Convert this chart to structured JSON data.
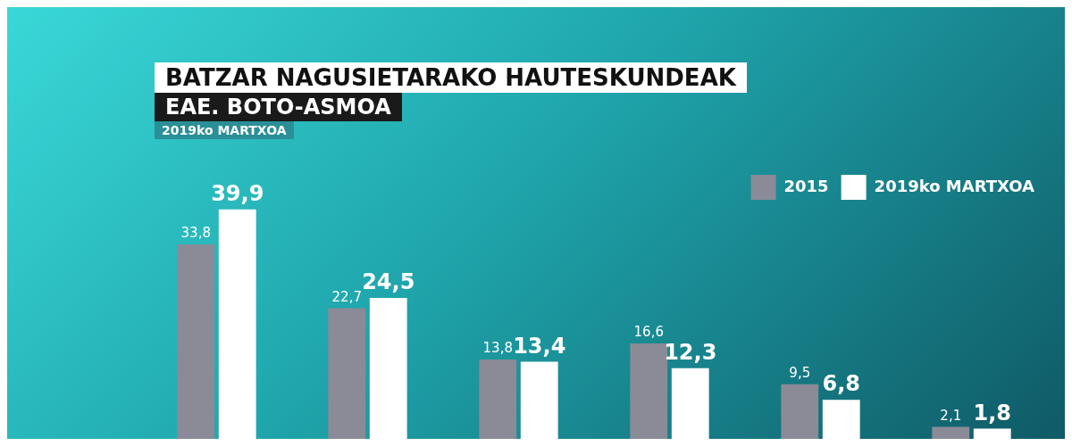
{
  "chart_data": {
    "type": "bar",
    "title": "BATZAR NAGUSIETARAKO HAUTESKUNDEAK",
    "subtitle": "EAE. BOTO-ASMOA",
    "annotations": [
      "2019ko MARTXOA"
    ],
    "categories": [
      null,
      null,
      null,
      null,
      null,
      null
    ],
    "series": [
      {
        "name": "2015",
        "color": "#8a8b97",
        "values": [
          33.8,
          22.7,
          13.8,
          16.6,
          9.5,
          2.1
        ],
        "value_labels": [
          "33,8",
          "22,7",
          "13,8",
          "16,6",
          "9,5",
          "2,1"
        ]
      },
      {
        "name": "2019ko MARTXOA",
        "color": "#ffffff",
        "values": [
          39.9,
          24.5,
          13.4,
          12.3,
          6.8,
          1.8
        ],
        "value_labels": [
          "39,9",
          "24,5",
          "13,4",
          "12,3",
          "6,8",
          "1,8"
        ]
      }
    ],
    "legend": "top right",
    "grid": false
  }
}
